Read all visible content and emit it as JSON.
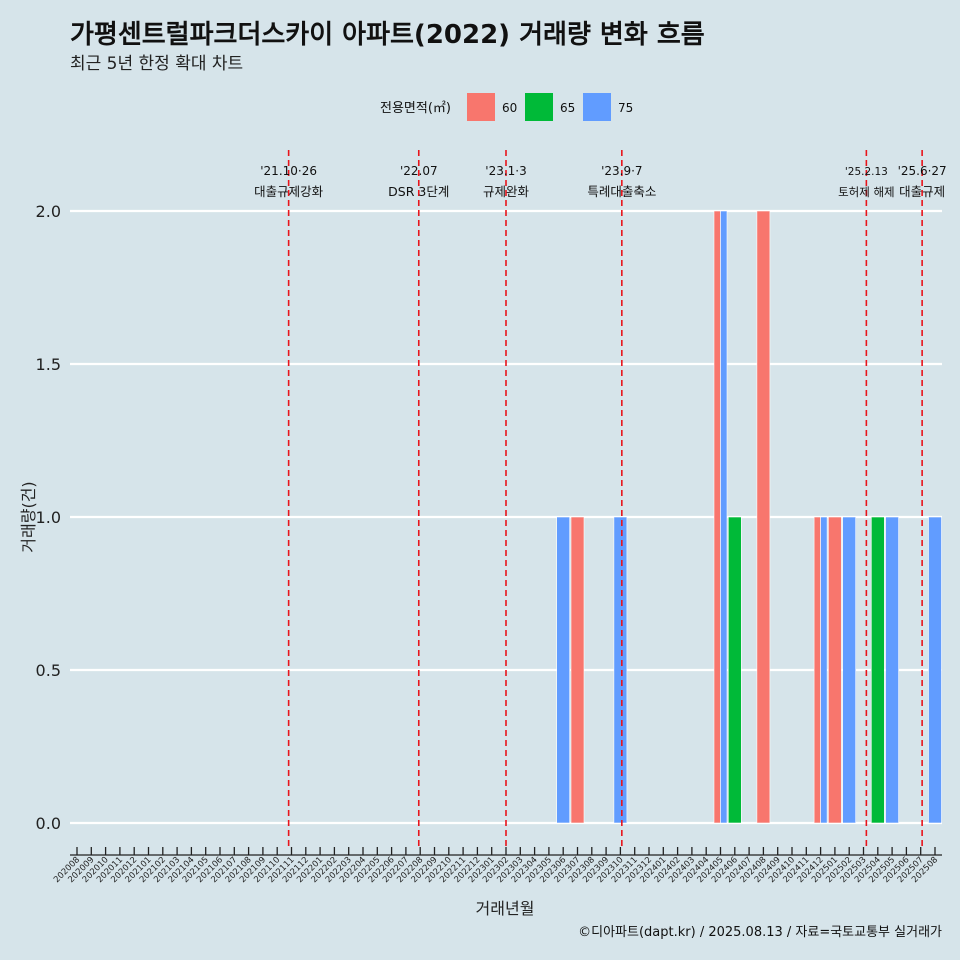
{
  "chart_data": {
    "type": "bar",
    "title": "가평센트럴파크더스카이 아파트(2022) 거래량 변화 흐름",
    "subtitle": "최근 5년 한정 확대 차트",
    "xlabel": "거래년월",
    "ylabel": "거래량(건)",
    "ylim": [
      0,
      2
    ],
    "yticks": [
      "0.0",
      "0.5",
      "1.0",
      "1.5",
      "2.0"
    ],
    "caption": "©디아파트(dapt.kr) / 2025.08.13 / 자료=국토교통부 실거래가",
    "legend": {
      "title": "전용면적(㎡)",
      "position": "top",
      "items": [
        {
          "name": "60",
          "color": "#F8766D"
        },
        {
          "name": "65",
          "color": "#00BA38"
        },
        {
          "name": "75",
          "color": "#619CFF"
        }
      ]
    },
    "categories": [
      "202008",
      "202009",
      "202010",
      "202011",
      "202012",
      "202101",
      "202102",
      "202103",
      "202104",
      "202105",
      "202106",
      "202107",
      "202108",
      "202109",
      "202110",
      "202111",
      "202112",
      "202201",
      "202202",
      "202203",
      "202204",
      "202205",
      "202206",
      "202207",
      "202208",
      "202209",
      "202210",
      "202211",
      "202212",
      "202301",
      "202302",
      "202303",
      "202304",
      "202305",
      "202306",
      "202307",
      "202308",
      "202309",
      "202310",
      "202311",
      "202312",
      "202401",
      "202402",
      "202403",
      "202404",
      "202405",
      "202406",
      "202407",
      "202408",
      "202409",
      "202410",
      "202411",
      "202412",
      "202501",
      "202502",
      "202503",
      "202504",
      "202505",
      "202506",
      "202507",
      "202508"
    ],
    "bars": [
      {
        "month": "202306",
        "area": "75",
        "value": 1
      },
      {
        "month": "202307",
        "area": "60",
        "value": 1
      },
      {
        "month": "202310",
        "area": "75",
        "value": 1
      },
      {
        "month": "202405",
        "area": "60",
        "value": 2
      },
      {
        "month": "202405",
        "area": "75",
        "value": 2
      },
      {
        "month": "202406",
        "area": "65",
        "value": 1
      },
      {
        "month": "202408",
        "area": "60",
        "value": 2
      },
      {
        "month": "202412",
        "area": "60",
        "value": 1
      },
      {
        "month": "202412",
        "area": "75",
        "value": 1
      },
      {
        "month": "202501",
        "area": "60",
        "value": 1
      },
      {
        "month": "202502",
        "area": "75",
        "value": 1
      },
      {
        "month": "202504",
        "area": "65",
        "value": 1
      },
      {
        "month": "202505",
        "area": "75",
        "value": 1
      },
      {
        "month": "202508",
        "area": "75",
        "value": 1
      }
    ],
    "events": [
      {
        "date": "'21.10·26",
        "label": "대출규제강화",
        "month_index": 14.8
      },
      {
        "date": "'22.07",
        "label": "DSR 3단계",
        "month_index": 23.9
      },
      {
        "date": "'23.1·3",
        "label": "규제완화",
        "month_index": 30
      },
      {
        "date": "'23.9·7",
        "label": "특례대출축소",
        "month_index": 38.1
      },
      {
        "date": "'25.2.13",
        "label": "토허제 해제",
        "month_index": 55.2
      },
      {
        "date": "'25.6·27",
        "label": "대출규제",
        "month_index": 59.1
      }
    ]
  }
}
